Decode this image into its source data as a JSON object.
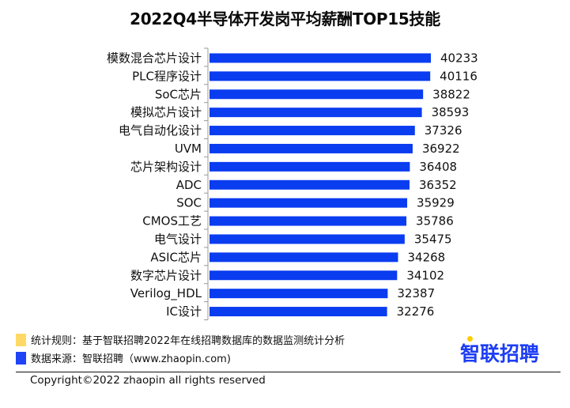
{
  "chart_data": {
    "type": "bar",
    "orientation": "horizontal",
    "title": "2022Q4半导体开发岗平均薪酬TOP15技能",
    "xlabel": "",
    "ylabel": "",
    "categories": [
      "模数混合芯片设计",
      "PLC程序设计",
      "SoC芯片",
      "模拟芯片设计",
      "电气自动化设计",
      "UVM",
      "芯片架构设计",
      "ADC",
      "SOC",
      "CMOS工艺",
      "电气设计",
      "ASIC芯片",
      "数字芯片设计",
      "Verilog_HDL",
      "IC设计"
    ],
    "values": [
      40233,
      40116,
      38822,
      38593,
      37326,
      36922,
      36408,
      36352,
      35929,
      35786,
      35475,
      34268,
      34102,
      32387,
      32276
    ],
    "xlim": [
      0,
      45000
    ],
    "grid": false,
    "bar_color": "#0a3cf0",
    "data_labels": true
  },
  "legend": {
    "rule": {
      "label": "统计规则：基于智联招聘2022年在线招聘数据库的数据监测统计分析",
      "color": "#ffd966"
    },
    "source": {
      "label": "数据来源：智联招聘（www.zhaopin.com)",
      "color": "#1f44f5"
    }
  },
  "logo": {
    "text": "智联招聘",
    "color": "#1d3df5",
    "dot_color": "#ffcc00"
  },
  "footer": {
    "copyright": "Copyright©2022 zhaopin all rights reserved"
  }
}
